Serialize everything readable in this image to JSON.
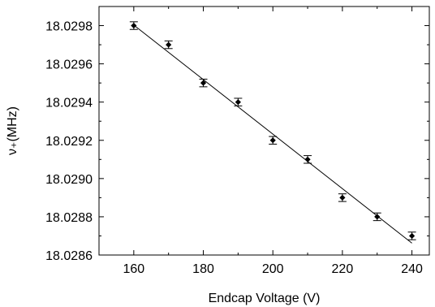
{
  "chart_data": {
    "type": "scatter",
    "xlabel": "Endcap Voltage (V)",
    "ylabel": "ν₊(MHz)",
    "xlim": [
      150,
      245
    ],
    "ylim": [
      18.0286,
      18.0299
    ],
    "x_ticks": [
      160,
      180,
      200,
      220,
      240
    ],
    "y_ticks": [
      18.0286,
      18.0288,
      18.029,
      18.0292,
      18.0294,
      18.0296,
      18.0298
    ],
    "x_tick_labels": [
      "160",
      "180",
      "200",
      "220",
      "240"
    ],
    "y_tick_labels": [
      "18.0286",
      "18.0288",
      "18.0290",
      "18.0292",
      "18.0294",
      "18.0296",
      "18.0298"
    ],
    "points": {
      "x": [
        160,
        170,
        180,
        190,
        200,
        210,
        220,
        230,
        240
      ],
      "y": [
        18.0298,
        18.0297,
        18.0295,
        18.0294,
        18.0292,
        18.0291,
        18.0289,
        18.0288,
        18.0287
      ],
      "yerr": [
        2e-05,
        2e-05,
        2e-05,
        2e-05,
        2e-05,
        2e-05,
        2e-05,
        2e-05,
        2e-05
      ]
    },
    "fit_line": {
      "x": [
        160,
        240
      ],
      "y": [
        18.029803,
        18.028662
      ]
    },
    "grid": false,
    "legend": "none"
  }
}
